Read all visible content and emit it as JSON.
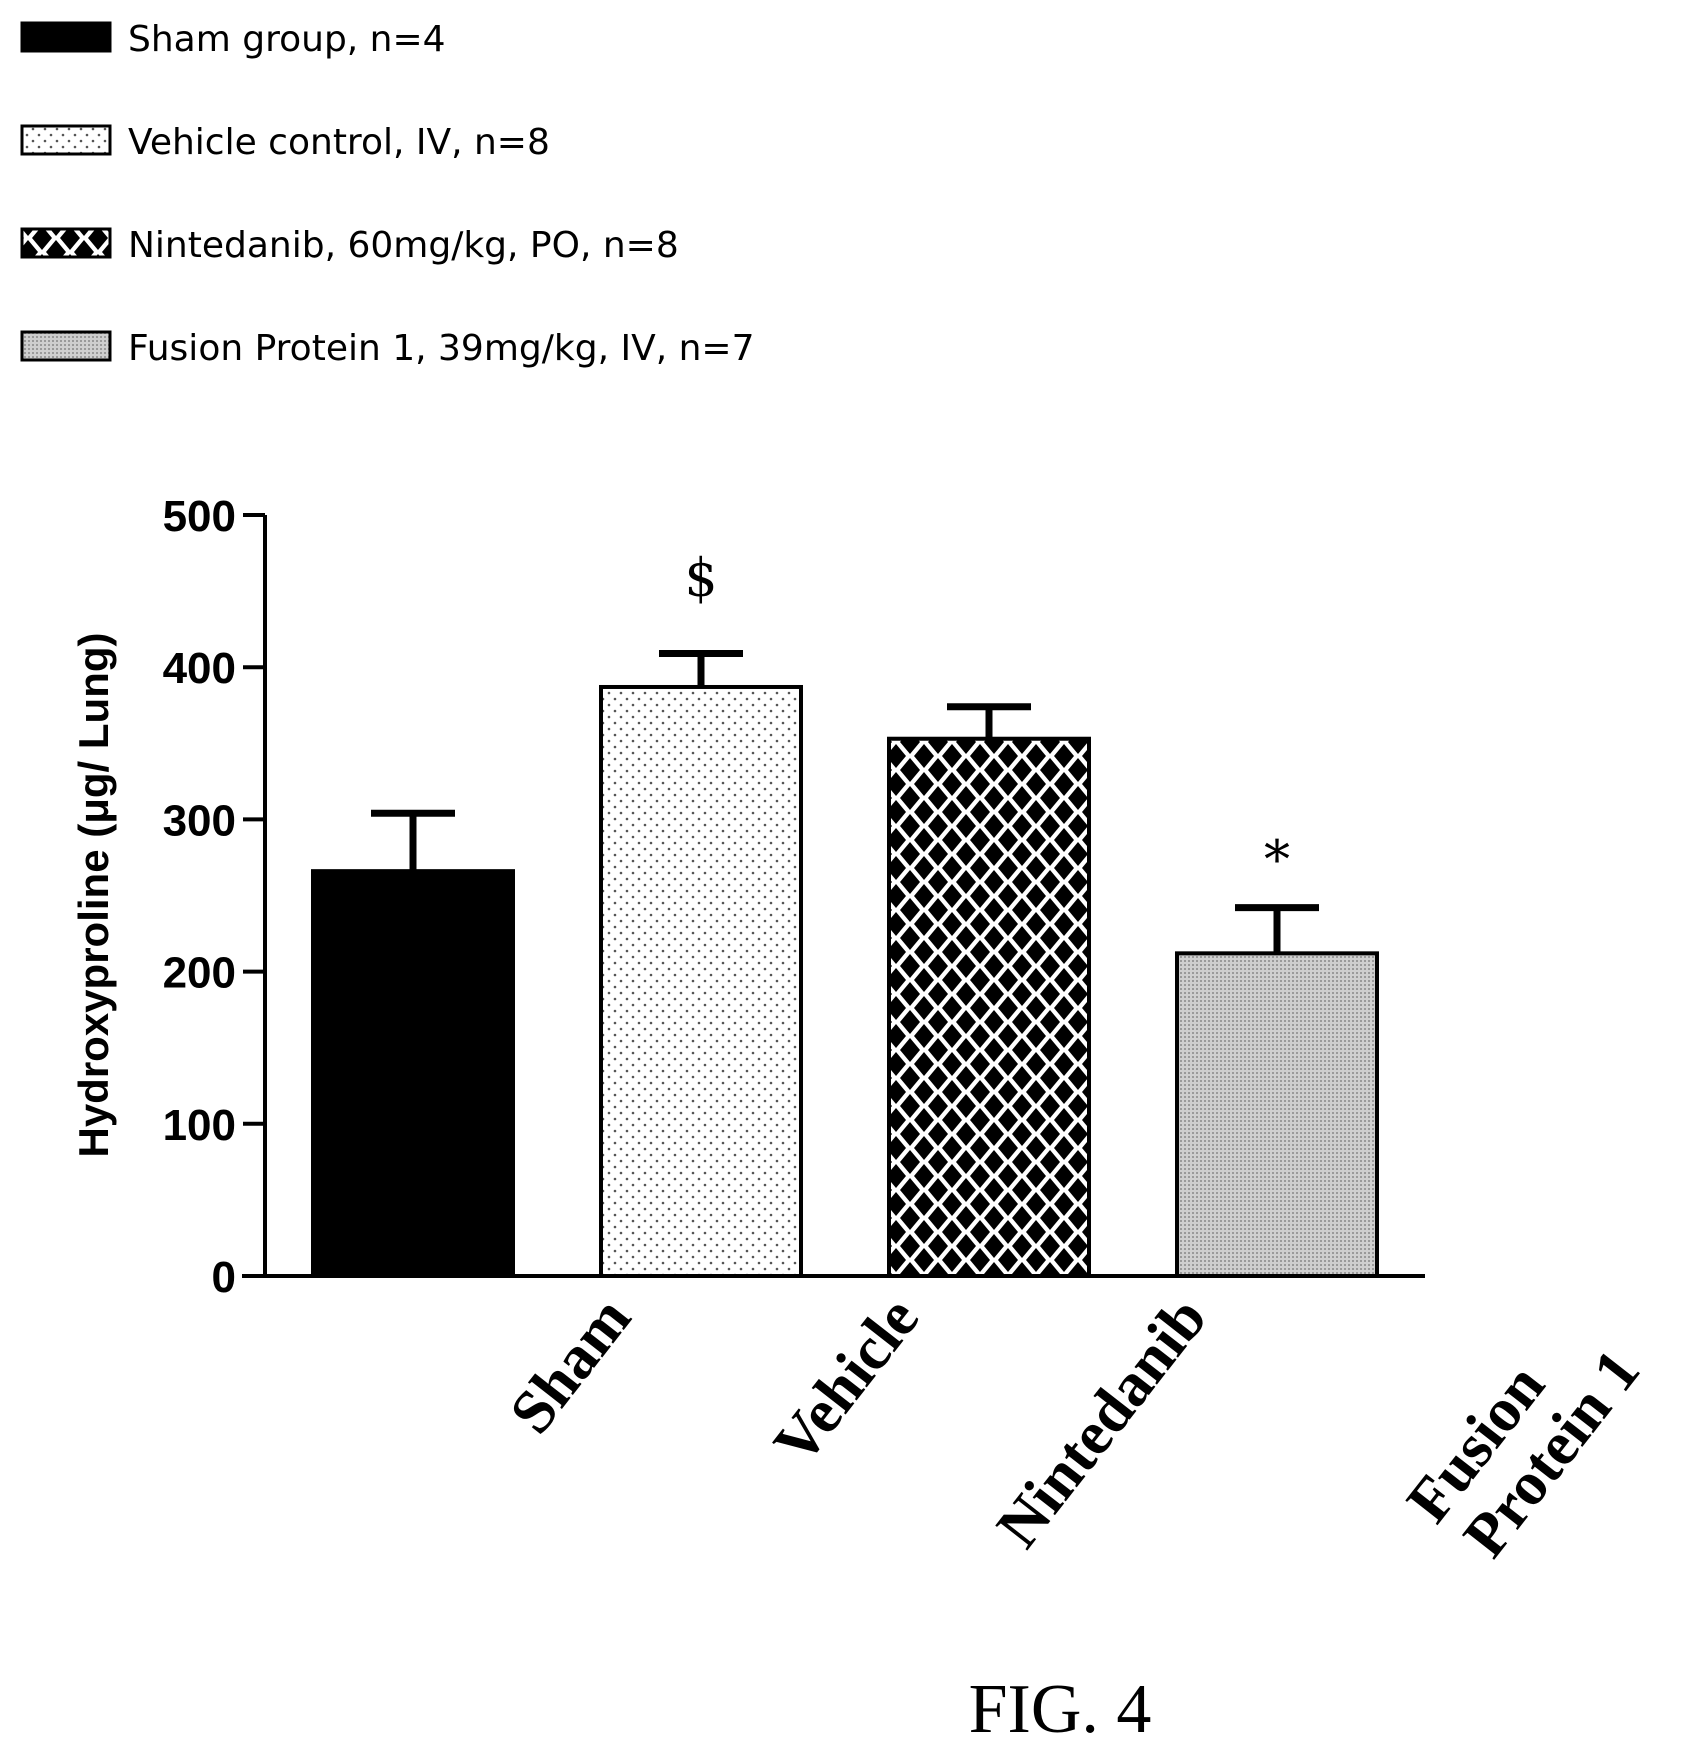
{
  "chart_data": {
    "type": "bar",
    "title": "",
    "xlabel": "",
    "ylabel": "Hydroxyproline (μg/ Lung)",
    "ylim": [
      0,
      500
    ],
    "yticks": [
      0,
      100,
      200,
      300,
      400,
      500
    ],
    "categories": [
      "Sham",
      "Vehicle",
      "Nintedanib",
      "Fusion Protein 1"
    ],
    "category_label_lines": [
      [
        "Sham"
      ],
      [
        "Vehicle"
      ],
      [
        "Nintedanib"
      ],
      [
        "Fusion",
        "Protein 1"
      ]
    ],
    "values": [
      266,
      387,
      353,
      212
    ],
    "errors": [
      38,
      22,
      21,
      30
    ],
    "significance": [
      "",
      "$",
      "",
      "*"
    ],
    "patterns": [
      "solid-black",
      "fine-dots",
      "black-diamonds",
      "fine-grey"
    ],
    "legend_position": "top-left",
    "legend": [
      "Sham group, n=4",
      "Vehicle control, IV, n=8",
      "Nintedanib, 60mg/kg, PO, n=8",
      "Fusion Protein 1, 39mg/kg, IV, n=7"
    ],
    "grid": false
  },
  "figure_label": "FIG. 4"
}
